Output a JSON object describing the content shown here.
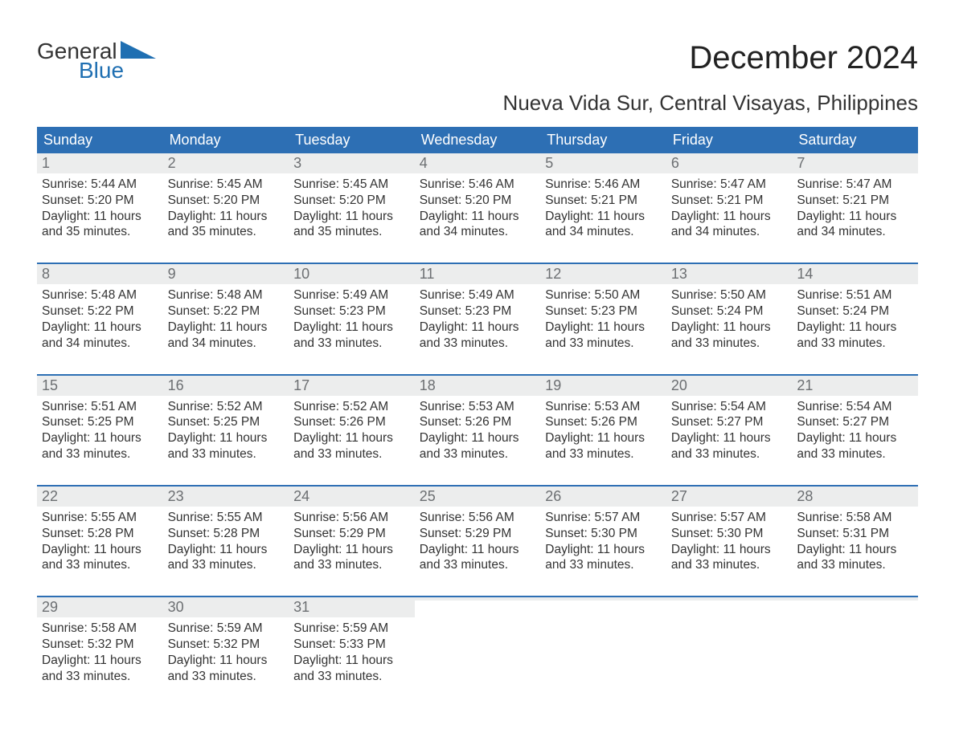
{
  "logo": {
    "word1": "General",
    "word2": "Blue"
  },
  "title": "December 2024",
  "location": "Nueva Vida Sur, Central Visayas, Philippines",
  "colors": {
    "header_bg": "#2d6fb4",
    "header_text": "#ffffff",
    "week_top_border": "#2d6fb4",
    "daynum_bg": "#eceded",
    "daynum_text": "#6c6f72",
    "body_text": "#333333",
    "logo_blue": "#1f6fb2",
    "background": "#ffffff"
  },
  "dow": [
    "Sunday",
    "Monday",
    "Tuesday",
    "Wednesday",
    "Thursday",
    "Friday",
    "Saturday"
  ],
  "weeks": [
    [
      {
        "n": "1",
        "sunrise": "Sunrise: 5:44 AM",
        "sunset": "Sunset: 5:20 PM",
        "d1": "Daylight: 11 hours",
        "d2": "and 35 minutes."
      },
      {
        "n": "2",
        "sunrise": "Sunrise: 5:45 AM",
        "sunset": "Sunset: 5:20 PM",
        "d1": "Daylight: 11 hours",
        "d2": "and 35 minutes."
      },
      {
        "n": "3",
        "sunrise": "Sunrise: 5:45 AM",
        "sunset": "Sunset: 5:20 PM",
        "d1": "Daylight: 11 hours",
        "d2": "and 35 minutes."
      },
      {
        "n": "4",
        "sunrise": "Sunrise: 5:46 AM",
        "sunset": "Sunset: 5:20 PM",
        "d1": "Daylight: 11 hours",
        "d2": "and 34 minutes."
      },
      {
        "n": "5",
        "sunrise": "Sunrise: 5:46 AM",
        "sunset": "Sunset: 5:21 PM",
        "d1": "Daylight: 11 hours",
        "d2": "and 34 minutes."
      },
      {
        "n": "6",
        "sunrise": "Sunrise: 5:47 AM",
        "sunset": "Sunset: 5:21 PM",
        "d1": "Daylight: 11 hours",
        "d2": "and 34 minutes."
      },
      {
        "n": "7",
        "sunrise": "Sunrise: 5:47 AM",
        "sunset": "Sunset: 5:21 PM",
        "d1": "Daylight: 11 hours",
        "d2": "and 34 minutes."
      }
    ],
    [
      {
        "n": "8",
        "sunrise": "Sunrise: 5:48 AM",
        "sunset": "Sunset: 5:22 PM",
        "d1": "Daylight: 11 hours",
        "d2": "and 34 minutes."
      },
      {
        "n": "9",
        "sunrise": "Sunrise: 5:48 AM",
        "sunset": "Sunset: 5:22 PM",
        "d1": "Daylight: 11 hours",
        "d2": "and 34 minutes."
      },
      {
        "n": "10",
        "sunrise": "Sunrise: 5:49 AM",
        "sunset": "Sunset: 5:23 PM",
        "d1": "Daylight: 11 hours",
        "d2": "and 33 minutes."
      },
      {
        "n": "11",
        "sunrise": "Sunrise: 5:49 AM",
        "sunset": "Sunset: 5:23 PM",
        "d1": "Daylight: 11 hours",
        "d2": "and 33 minutes."
      },
      {
        "n": "12",
        "sunrise": "Sunrise: 5:50 AM",
        "sunset": "Sunset: 5:23 PM",
        "d1": "Daylight: 11 hours",
        "d2": "and 33 minutes."
      },
      {
        "n": "13",
        "sunrise": "Sunrise: 5:50 AM",
        "sunset": "Sunset: 5:24 PM",
        "d1": "Daylight: 11 hours",
        "d2": "and 33 minutes."
      },
      {
        "n": "14",
        "sunrise": "Sunrise: 5:51 AM",
        "sunset": "Sunset: 5:24 PM",
        "d1": "Daylight: 11 hours",
        "d2": "and 33 minutes."
      }
    ],
    [
      {
        "n": "15",
        "sunrise": "Sunrise: 5:51 AM",
        "sunset": "Sunset: 5:25 PM",
        "d1": "Daylight: 11 hours",
        "d2": "and 33 minutes."
      },
      {
        "n": "16",
        "sunrise": "Sunrise: 5:52 AM",
        "sunset": "Sunset: 5:25 PM",
        "d1": "Daylight: 11 hours",
        "d2": "and 33 minutes."
      },
      {
        "n": "17",
        "sunrise": "Sunrise: 5:52 AM",
        "sunset": "Sunset: 5:26 PM",
        "d1": "Daylight: 11 hours",
        "d2": "and 33 minutes."
      },
      {
        "n": "18",
        "sunrise": "Sunrise: 5:53 AM",
        "sunset": "Sunset: 5:26 PM",
        "d1": "Daylight: 11 hours",
        "d2": "and 33 minutes."
      },
      {
        "n": "19",
        "sunrise": "Sunrise: 5:53 AM",
        "sunset": "Sunset: 5:26 PM",
        "d1": "Daylight: 11 hours",
        "d2": "and 33 minutes."
      },
      {
        "n": "20",
        "sunrise": "Sunrise: 5:54 AM",
        "sunset": "Sunset: 5:27 PM",
        "d1": "Daylight: 11 hours",
        "d2": "and 33 minutes."
      },
      {
        "n": "21",
        "sunrise": "Sunrise: 5:54 AM",
        "sunset": "Sunset: 5:27 PM",
        "d1": "Daylight: 11 hours",
        "d2": "and 33 minutes."
      }
    ],
    [
      {
        "n": "22",
        "sunrise": "Sunrise: 5:55 AM",
        "sunset": "Sunset: 5:28 PM",
        "d1": "Daylight: 11 hours",
        "d2": "and 33 minutes."
      },
      {
        "n": "23",
        "sunrise": "Sunrise: 5:55 AM",
        "sunset": "Sunset: 5:28 PM",
        "d1": "Daylight: 11 hours",
        "d2": "and 33 minutes."
      },
      {
        "n": "24",
        "sunrise": "Sunrise: 5:56 AM",
        "sunset": "Sunset: 5:29 PM",
        "d1": "Daylight: 11 hours",
        "d2": "and 33 minutes."
      },
      {
        "n": "25",
        "sunrise": "Sunrise: 5:56 AM",
        "sunset": "Sunset: 5:29 PM",
        "d1": "Daylight: 11 hours",
        "d2": "and 33 minutes."
      },
      {
        "n": "26",
        "sunrise": "Sunrise: 5:57 AM",
        "sunset": "Sunset: 5:30 PM",
        "d1": "Daylight: 11 hours",
        "d2": "and 33 minutes."
      },
      {
        "n": "27",
        "sunrise": "Sunrise: 5:57 AM",
        "sunset": "Sunset: 5:30 PM",
        "d1": "Daylight: 11 hours",
        "d2": "and 33 minutes."
      },
      {
        "n": "28",
        "sunrise": "Sunrise: 5:58 AM",
        "sunset": "Sunset: 5:31 PM",
        "d1": "Daylight: 11 hours",
        "d2": "and 33 minutes."
      }
    ],
    [
      {
        "n": "29",
        "sunrise": "Sunrise: 5:58 AM",
        "sunset": "Sunset: 5:32 PM",
        "d1": "Daylight: 11 hours",
        "d2": "and 33 minutes."
      },
      {
        "n": "30",
        "sunrise": "Sunrise: 5:59 AM",
        "sunset": "Sunset: 5:32 PM",
        "d1": "Daylight: 11 hours",
        "d2": "and 33 minutes."
      },
      {
        "n": "31",
        "sunrise": "Sunrise: 5:59 AM",
        "sunset": "Sunset: 5:33 PM",
        "d1": "Daylight: 11 hours",
        "d2": "and 33 minutes."
      },
      {
        "empty": true
      },
      {
        "empty": true
      },
      {
        "empty": true
      },
      {
        "empty": true
      }
    ]
  ]
}
